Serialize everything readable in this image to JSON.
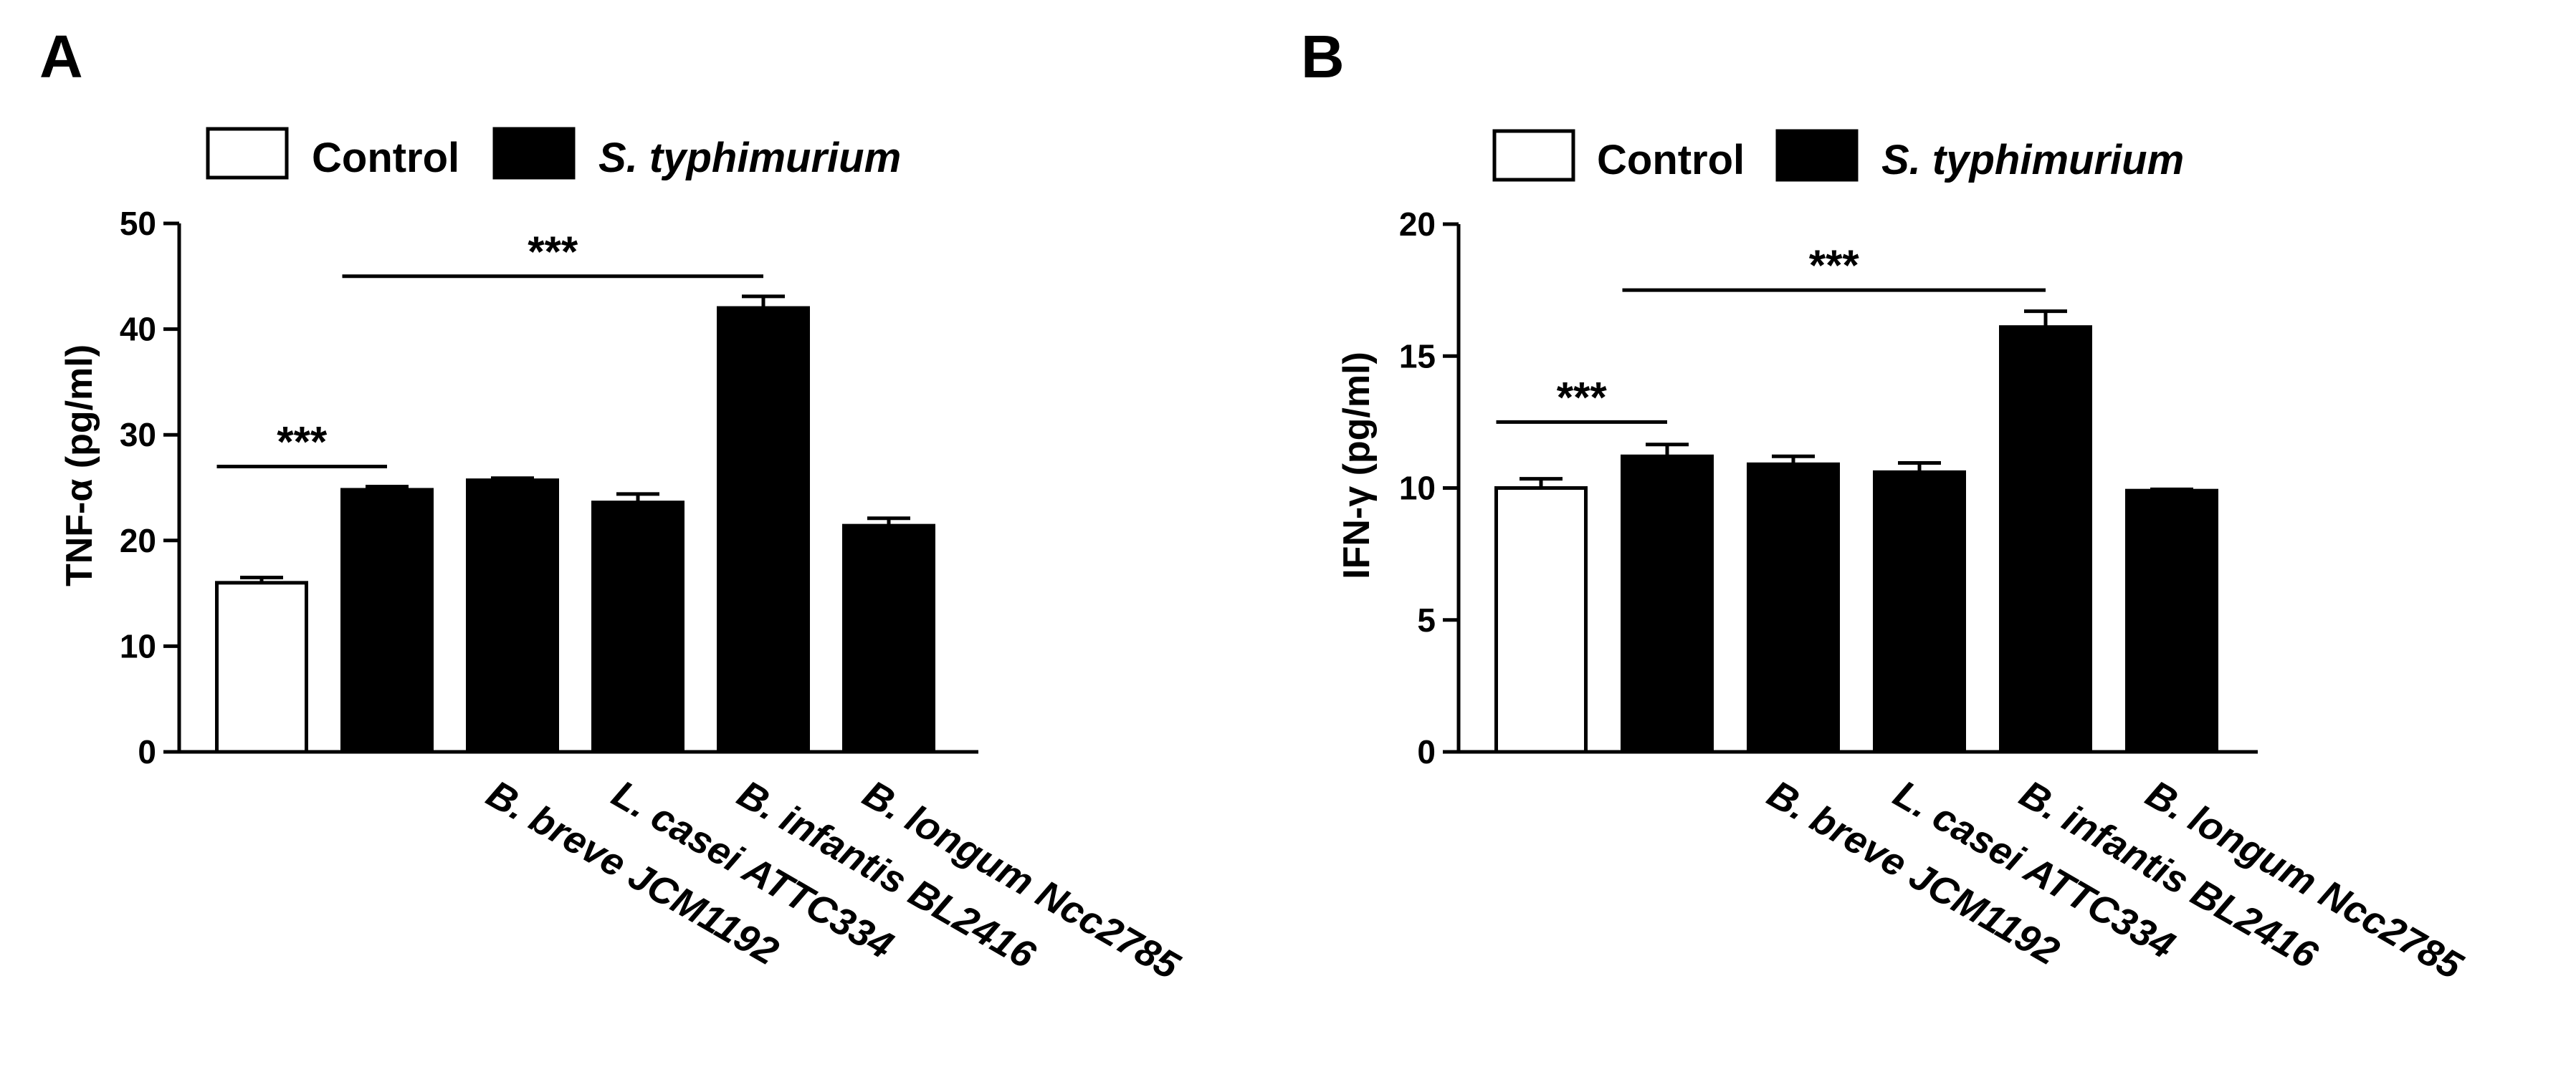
{
  "legend": {
    "control_label": "Control",
    "treated_label": "S. typhimurium",
    "control_color": "#ffffff",
    "treated_color": "#000000"
  },
  "chart_data": [
    {
      "panel_label": "A",
      "type": "bar",
      "title": "",
      "xlabel": "",
      "ylabel": "TNF-α (pg/ml)",
      "ylim": [
        0,
        50
      ],
      "yticks": [
        0,
        10,
        20,
        30,
        40,
        50
      ],
      "grid": false,
      "legend_position": "top-left",
      "categories": [
        "",
        "",
        "B. breve JCM1192",
        "L. casei ATTC334",
        "B. infantis BL2416",
        "B. longum Ncc2785"
      ],
      "groups": [
        "Control",
        "S. typhimurium",
        "S. typhimurium",
        "S. typhimurium",
        "S. typhimurium",
        "S. typhimurium"
      ],
      "values": [
        16.0,
        24.8,
        25.7,
        23.6,
        42.0,
        21.4
      ],
      "errors": [
        0.5,
        0.3,
        0.2,
        0.8,
        1.1,
        0.7
      ],
      "significance": [
        {
          "from": 0,
          "to": 1,
          "label": "***",
          "y": 27
        },
        {
          "from": 1,
          "to": 4,
          "label": "***",
          "y": 45
        }
      ]
    },
    {
      "panel_label": "B",
      "type": "bar",
      "title": "",
      "xlabel": "",
      "ylabel": "IFN-γ (pg/ml)",
      "ylim": [
        0,
        20
      ],
      "yticks": [
        0,
        5,
        10,
        15,
        20
      ],
      "grid": false,
      "legend_position": "top-left",
      "categories": [
        "",
        "",
        "B. breve JCM1192",
        "L. casei ATTC334",
        "B. infantis BL2416",
        "B. longum Ncc2785"
      ],
      "groups": [
        "Control",
        "S. typhimurium",
        "S. typhimurium",
        "S. typhimurium",
        "S. typhimurium",
        "S. typhimurium"
      ],
      "values": [
        10.0,
        11.2,
        10.9,
        10.6,
        16.1,
        9.9
      ],
      "errors": [
        0.35,
        0.45,
        0.3,
        0.35,
        0.6,
        0.05
      ],
      "significance": [
        {
          "from": 0,
          "to": 1,
          "label": "***",
          "y": 12.5
        },
        {
          "from": 1,
          "to": 4,
          "label": "***",
          "y": 17.5
        }
      ]
    }
  ]
}
